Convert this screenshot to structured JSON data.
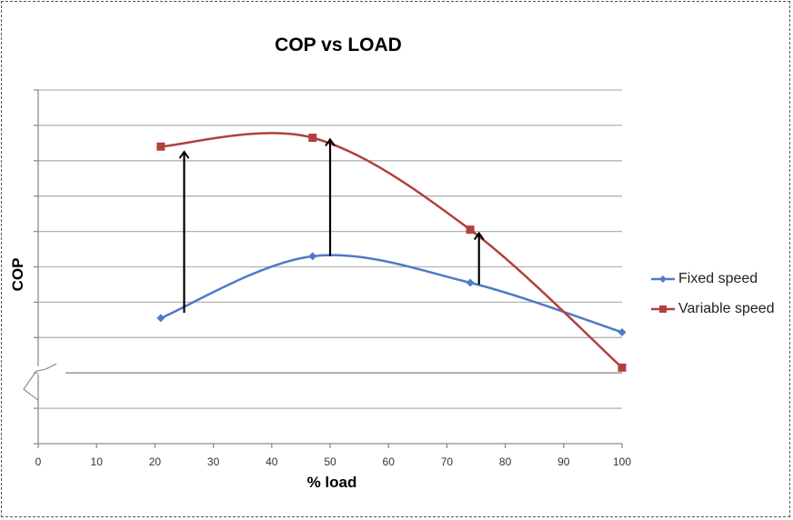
{
  "chart_data": {
    "type": "line",
    "title": "COP vs LOAD",
    "xlabel": "% load",
    "ylabel": "COP",
    "xlim": [
      0,
      100
    ],
    "x_ticks": [
      0,
      10,
      20,
      30,
      40,
      50,
      60,
      70,
      80,
      90,
      100
    ],
    "y_gridlines": 10,
    "y_ticks_labeled": false,
    "y_axis_break": true,
    "grid": true,
    "legend": "right",
    "series": [
      {
        "name": "Fixed speed",
        "color": "#4F7AC6",
        "marker": "diamond",
        "smooth": true,
        "points": [
          [
            21,
            3.55
          ],
          [
            47,
            5.3
          ],
          [
            74,
            4.55
          ],
          [
            100,
            3.15
          ]
        ]
      },
      {
        "name": "Variable speed",
        "color": "#B0413E",
        "marker": "square",
        "smooth": true,
        "points": [
          [
            21,
            8.4
          ],
          [
            47,
            8.65
          ],
          [
            74,
            6.05
          ],
          [
            100,
            2.15
          ]
        ]
      }
    ],
    "annotations": [
      {
        "type": "arrow",
        "x": 25,
        "from": 3.7,
        "to": 8.2
      },
      {
        "type": "arrow",
        "x": 50,
        "from": 5.3,
        "to": 8.55
      },
      {
        "type": "arrow",
        "x": 75.5,
        "from": 4.5,
        "to": 5.9
      }
    ]
  }
}
